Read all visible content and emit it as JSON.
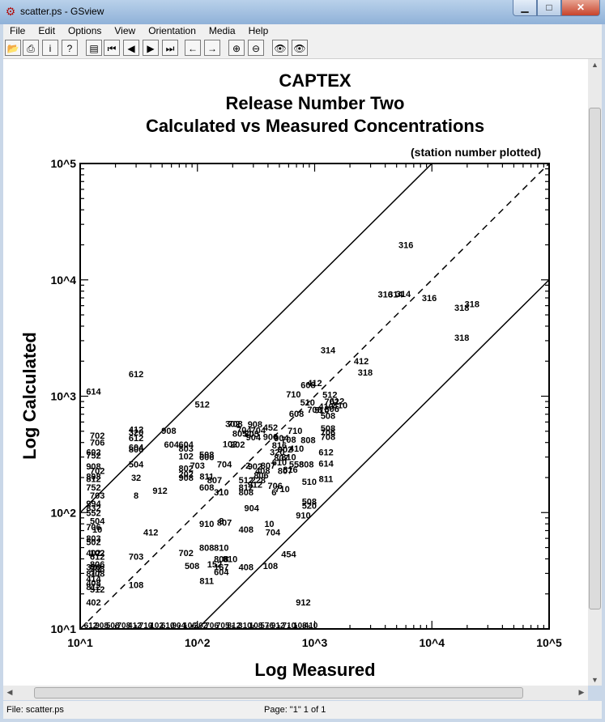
{
  "window": {
    "title": "scatter.ps - GSview",
    "minimize": "▁",
    "maximize": "□",
    "close": "✕"
  },
  "menu": [
    "File",
    "Edit",
    "Options",
    "View",
    "Orientation",
    "Media",
    "Help"
  ],
  "toolbar": [
    {
      "icon": "open-folder-icon",
      "glyph": "📂"
    },
    {
      "icon": "printer-icon",
      "glyph": "⎙"
    },
    {
      "icon": "info-icon",
      "glyph": "i"
    },
    {
      "icon": "help-icon",
      "glyph": "?"
    },
    {
      "icon": "page-select-icon",
      "glyph": "▤"
    },
    {
      "icon": "first-page-icon",
      "glyph": "⏮"
    },
    {
      "icon": "prev-page-icon",
      "glyph": "◀"
    },
    {
      "icon": "next-page-icon",
      "glyph": "▶"
    },
    {
      "icon": "last-page-icon",
      "glyph": "⏭"
    },
    {
      "icon": "back-icon",
      "glyph": "←"
    },
    {
      "icon": "forward-icon",
      "glyph": "→"
    },
    {
      "icon": "zoom-in-icon",
      "glyph": "⊕"
    },
    {
      "icon": "zoom-out-icon",
      "glyph": "⊖"
    },
    {
      "icon": "eye-abc-icon",
      "glyph": "👁"
    },
    {
      "icon": "eye-dots-icon",
      "glyph": "👁"
    }
  ],
  "status": {
    "file": "File: scatter.ps",
    "page": "Page: \"1\"  1 of 1"
  },
  "chart_data": {
    "type": "scatter",
    "title": [
      "CAPTEX",
      "Release Number Two",
      "Calculated vs Measured Concentrations"
    ],
    "subtitle": "(station number plotted)",
    "xlabel": "Log Measured",
    "ylabel": "Log Calculated",
    "xscale": "log",
    "yscale": "log",
    "xlim": [
      10,
      100000
    ],
    "ylim": [
      10,
      100000
    ],
    "xticks": [
      "10^1",
      "10^2",
      "10^3",
      "10^4",
      "10^5"
    ],
    "yticks": [
      "10^1",
      "10^2",
      "10^3",
      "10^4",
      "10^5"
    ],
    "lines": [
      "y=x (dashed)",
      "y=10x",
      "y=x/10"
    ],
    "points": [
      {
        "x": 6000,
        "y": 20000,
        "label": "316"
      },
      {
        "x": 4000,
        "y": 7500,
        "label": "316"
      },
      {
        "x": 4900,
        "y": 7500,
        "label": "314"
      },
      {
        "x": 5700,
        "y": 7600,
        "label": "314"
      },
      {
        "x": 9500,
        "y": 7000,
        "label": "316"
      },
      {
        "x": 18000,
        "y": 5800,
        "label": "318"
      },
      {
        "x": 22000,
        "y": 6200,
        "label": "318"
      },
      {
        "x": 18000,
        "y": 3200,
        "label": "318"
      },
      {
        "x": 1300,
        "y": 2500,
        "label": "314"
      },
      {
        "x": 2500,
        "y": 2000,
        "label": "412"
      },
      {
        "x": 2700,
        "y": 1600,
        "label": "318"
      },
      {
        "x": 30,
        "y": 1550,
        "label": "612"
      },
      {
        "x": 13,
        "y": 1100,
        "label": "614"
      },
      {
        "x": 110,
        "y": 850,
        "label": "512"
      },
      {
        "x": 1000,
        "y": 1300,
        "label": "412"
      },
      {
        "x": 880,
        "y": 1250,
        "label": "608"
      },
      {
        "x": 660,
        "y": 1040,
        "label": "710"
      },
      {
        "x": 1350,
        "y": 1030,
        "label": "512"
      },
      {
        "x": 870,
        "y": 890,
        "label": "510"
      },
      {
        "x": 1400,
        "y": 900,
        "label": "702"
      },
      {
        "x": 1550,
        "y": 910,
        "label": "612"
      },
      {
        "x": 1250,
        "y": 820,
        "label": "410"
      },
      {
        "x": 1650,
        "y": 840,
        "label": "810"
      },
      {
        "x": 1400,
        "y": 780,
        "label": "806"
      },
      {
        "x": 1000,
        "y": 770,
        "label": "708"
      },
      {
        "x": 1150,
        "y": 760,
        "label": "510"
      },
      {
        "x": 700,
        "y": 710,
        "label": "608"
      },
      {
        "x": 1300,
        "y": 680,
        "label": "508"
      },
      {
        "x": 200,
        "y": 580,
        "label": "302"
      },
      {
        "x": 210,
        "y": 580,
        "label": "708"
      },
      {
        "x": 310,
        "y": 575,
        "label": "908"
      },
      {
        "x": 420,
        "y": 540,
        "label": "452"
      },
      {
        "x": 1300,
        "y": 530,
        "label": "508"
      },
      {
        "x": 30,
        "y": 520,
        "label": "412"
      },
      {
        "x": 57,
        "y": 505,
        "label": "908"
      },
      {
        "x": 30,
        "y": 490,
        "label": "320"
      },
      {
        "x": 250,
        "y": 515,
        "label": "704"
      },
      {
        "x": 330,
        "y": 510,
        "label": "704"
      },
      {
        "x": 680,
        "y": 505,
        "label": "710"
      },
      {
        "x": 1300,
        "y": 490,
        "label": "706"
      },
      {
        "x": 230,
        "y": 480,
        "label": "805"
      },
      {
        "x": 290,
        "y": 475,
        "label": "805"
      },
      {
        "x": 300,
        "y": 445,
        "label": "904"
      },
      {
        "x": 1300,
        "y": 450,
        "label": "708"
      },
      {
        "x": 14,
        "y": 460,
        "label": "702"
      },
      {
        "x": 30,
        "y": 440,
        "label": "612"
      },
      {
        "x": 420,
        "y": 450,
        "label": "906"
      },
      {
        "x": 520,
        "y": 440,
        "label": "904"
      },
      {
        "x": 600,
        "y": 425,
        "label": "708"
      },
      {
        "x": 880,
        "y": 420,
        "label": "808"
      },
      {
        "x": 14,
        "y": 400,
        "label": "706"
      },
      {
        "x": 60,
        "y": 385,
        "label": "604"
      },
      {
        "x": 80,
        "y": 385,
        "label": "604"
      },
      {
        "x": 190,
        "y": 390,
        "label": "102"
      },
      {
        "x": 220,
        "y": 385,
        "label": "202"
      },
      {
        "x": 500,
        "y": 380,
        "label": "816"
      },
      {
        "x": 30,
        "y": 365,
        "label": "604"
      },
      {
        "x": 30,
        "y": 350,
        "label": "806"
      },
      {
        "x": 80,
        "y": 355,
        "label": "803"
      },
      {
        "x": 560,
        "y": 350,
        "label": "902"
      },
      {
        "x": 700,
        "y": 355,
        "label": "410"
      },
      {
        "x": 1250,
        "y": 330,
        "label": "612"
      },
      {
        "x": 13,
        "y": 330,
        "label": "602"
      },
      {
        "x": 13,
        "y": 310,
        "label": "752"
      },
      {
        "x": 80,
        "y": 305,
        "label": "102"
      },
      {
        "x": 120,
        "y": 315,
        "label": "508"
      },
      {
        "x": 120,
        "y": 300,
        "label": "606"
      },
      {
        "x": 480,
        "y": 330,
        "label": "320"
      },
      {
        "x": 520,
        "y": 295,
        "label": "807"
      },
      {
        "x": 600,
        "y": 300,
        "label": "810"
      },
      {
        "x": 30,
        "y": 260,
        "label": "504"
      },
      {
        "x": 13,
        "y": 250,
        "label": "908"
      },
      {
        "x": 80,
        "y": 240,
        "label": "802"
      },
      {
        "x": 100,
        "y": 255,
        "label": "703"
      },
      {
        "x": 170,
        "y": 260,
        "label": "704"
      },
      {
        "x": 270,
        "y": 255,
        "label": "2"
      },
      {
        "x": 310,
        "y": 250,
        "label": "902"
      },
      {
        "x": 400,
        "y": 255,
        "label": "807"
      },
      {
        "x": 500,
        "y": 270,
        "label": "610"
      },
      {
        "x": 700,
        "y": 260,
        "label": "558"
      },
      {
        "x": 850,
        "y": 260,
        "label": "808"
      },
      {
        "x": 1250,
        "y": 265,
        "label": "614"
      },
      {
        "x": 14,
        "y": 230,
        "label": "702"
      },
      {
        "x": 360,
        "y": 230,
        "label": "408"
      },
      {
        "x": 560,
        "y": 230,
        "label": "807"
      },
      {
        "x": 620,
        "y": 235,
        "label": "816"
      },
      {
        "x": 80,
        "y": 215,
        "label": "202"
      },
      {
        "x": 80,
        "y": 200,
        "label": "908"
      },
      {
        "x": 13,
        "y": 205,
        "label": "808"
      },
      {
        "x": 13,
        "y": 195,
        "label": "812"
      },
      {
        "x": 30,
        "y": 200,
        "label": "32"
      },
      {
        "x": 120,
        "y": 205,
        "label": "811"
      },
      {
        "x": 140,
        "y": 190,
        "label": "807"
      },
      {
        "x": 350,
        "y": 210,
        "label": "806"
      },
      {
        "x": 260,
        "y": 190,
        "label": "512"
      },
      {
        "x": 330,
        "y": 190,
        "label": "228"
      },
      {
        "x": 900,
        "y": 185,
        "label": "510"
      },
      {
        "x": 1250,
        "y": 195,
        "label": "811"
      },
      {
        "x": 13,
        "y": 165,
        "label": "752"
      },
      {
        "x": 120,
        "y": 165,
        "label": "608"
      },
      {
        "x": 260,
        "y": 165,
        "label": "812"
      },
      {
        "x": 310,
        "y": 175,
        "label": "912"
      },
      {
        "x": 460,
        "y": 170,
        "label": "706"
      },
      {
        "x": 530,
        "y": 160,
        "label": "710"
      },
      {
        "x": 48,
        "y": 155,
        "label": "912"
      },
      {
        "x": 30,
        "y": 140,
        "label": "8"
      },
      {
        "x": 14,
        "y": 140,
        "label": "703"
      },
      {
        "x": 160,
        "y": 150,
        "label": "310"
      },
      {
        "x": 260,
        "y": 150,
        "label": "808"
      },
      {
        "x": 450,
        "y": 150,
        "label": "6"
      },
      {
        "x": 900,
        "y": 125,
        "label": "508"
      },
      {
        "x": 900,
        "y": 115,
        "label": "520"
      },
      {
        "x": 290,
        "y": 110,
        "label": "904"
      },
      {
        "x": 13,
        "y": 120,
        "label": "994"
      },
      {
        "x": 13,
        "y": 110,
        "label": "832"
      },
      {
        "x": 13,
        "y": 100,
        "label": "552"
      },
      {
        "x": 800,
        "y": 95,
        "label": "910"
      },
      {
        "x": 14,
        "y": 85,
        "label": "504"
      },
      {
        "x": 120,
        "y": 80,
        "label": "910"
      },
      {
        "x": 160,
        "y": 85,
        "label": "8"
      },
      {
        "x": 170,
        "y": 82,
        "label": "807"
      },
      {
        "x": 410,
        "y": 80,
        "label": "10"
      },
      {
        "x": 13,
        "y": 75,
        "label": "706"
      },
      {
        "x": 14,
        "y": 72,
        "label": "10"
      },
      {
        "x": 260,
        "y": 72,
        "label": "408"
      },
      {
        "x": 440,
        "y": 68,
        "label": "704"
      },
      {
        "x": 40,
        "y": 68,
        "label": "412"
      },
      {
        "x": 13,
        "y": 60,
        "label": "803"
      },
      {
        "x": 13,
        "y": 56,
        "label": "502"
      },
      {
        "x": 120,
        "y": 50,
        "label": "808"
      },
      {
        "x": 160,
        "y": 50,
        "label": "810"
      },
      {
        "x": 13,
        "y": 45,
        "label": "402"
      },
      {
        "x": 14,
        "y": 45,
        "label": "102"
      },
      {
        "x": 14,
        "y": 42,
        "label": "612"
      },
      {
        "x": 30,
        "y": 42,
        "label": "703"
      },
      {
        "x": 80,
        "y": 45,
        "label": "702"
      },
      {
        "x": 600,
        "y": 44,
        "label": "454"
      },
      {
        "x": 160,
        "y": 40,
        "label": "808"
      },
      {
        "x": 190,
        "y": 40,
        "label": "810"
      },
      {
        "x": 14,
        "y": 36,
        "label": "806"
      },
      {
        "x": 90,
        "y": 35,
        "label": "508"
      },
      {
        "x": 140,
        "y": 36,
        "label": "152"
      },
      {
        "x": 160,
        "y": 34,
        "label": "167"
      },
      {
        "x": 13,
        "y": 34,
        "label": "320"
      },
      {
        "x": 14,
        "y": 33,
        "label": "908"
      },
      {
        "x": 13,
        "y": 30,
        "label": "817"
      },
      {
        "x": 14,
        "y": 30,
        "label": "708"
      },
      {
        "x": 160,
        "y": 31,
        "label": "604"
      },
      {
        "x": 260,
        "y": 34,
        "label": "408"
      },
      {
        "x": 420,
        "y": 35,
        "label": "108"
      },
      {
        "x": 13,
        "y": 27,
        "label": "414"
      },
      {
        "x": 13,
        "y": 25,
        "label": "408"
      },
      {
        "x": 120,
        "y": 26,
        "label": "811"
      },
      {
        "x": 30,
        "y": 24,
        "label": "108"
      },
      {
        "x": 13,
        "y": 23,
        "label": "812"
      },
      {
        "x": 14,
        "y": 22,
        "label": "512"
      },
      {
        "x": 800,
        "y": 17,
        "label": "912"
      },
      {
        "x": 13,
        "y": 17,
        "label": "402"
      }
    ],
    "bottom_labels": [
      "612",
      "908",
      "508",
      "708",
      "412",
      "710",
      "102",
      "610",
      "904",
      "106",
      "302",
      "706",
      "705",
      "812",
      "310",
      "108",
      "576",
      "912",
      "710",
      "108",
      "410"
    ]
  }
}
